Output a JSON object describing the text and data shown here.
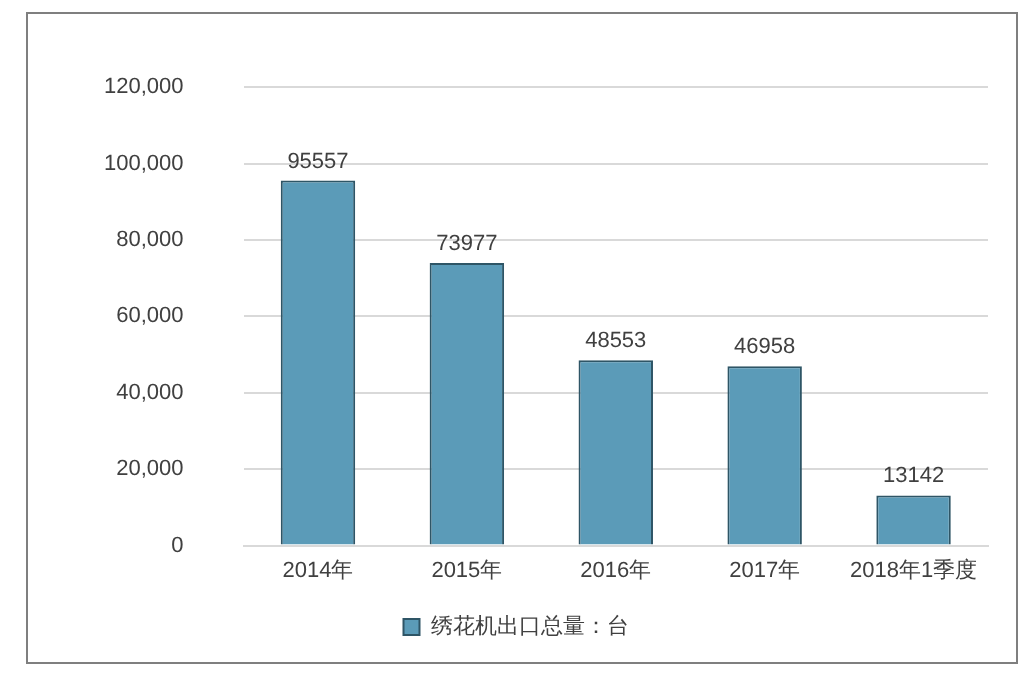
{
  "chart_data": {
    "type": "bar",
    "categories": [
      "2014年",
      "2015年",
      "2016年",
      "2017年",
      "2018年1季度"
    ],
    "series": [
      {
        "name": "绣花机出口总量：台",
        "color": "#5b9bb8",
        "values": [
          95557,
          73977,
          48553,
          46958,
          13142
        ]
      }
    ],
    "ylim": [
      0,
      120000
    ],
    "yticks": [
      {
        "value": 0,
        "label": "0"
      },
      {
        "value": 20000,
        "label": "20,000"
      },
      {
        "value": 40000,
        "label": "40,000"
      },
      {
        "value": 60000,
        "label": "60,000"
      },
      {
        "value": 80000,
        "label": "80,000"
      },
      {
        "value": 100000,
        "label": "100,000"
      },
      {
        "value": 120000,
        "label": "120,000"
      }
    ],
    "grid": "y",
    "legend": "bottom",
    "data_labels": true
  }
}
